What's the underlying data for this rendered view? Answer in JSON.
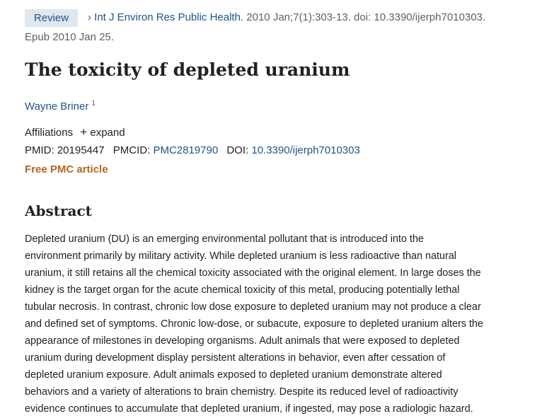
{
  "header": {
    "badge": "Review",
    "journal": "Int J Environ Res Public Health.",
    "details": "2010 Jan;7(1):303-13. doi: 10.3390/ijerph7010303.",
    "epub": "Epub 2010 Jan 25."
  },
  "title": "The toxicity of depleted uranium",
  "authors": [
    {
      "name": "Wayne Briner",
      "affiliation_ref": "1"
    }
  ],
  "affiliations": {
    "label": "Affiliations",
    "toggle": "expand"
  },
  "identifiers": {
    "pmid_label": "PMID:",
    "pmid": "20195447",
    "pmcid_label": "PMCID:",
    "pmcid": "PMC2819790",
    "doi_label": "DOI:",
    "doi": "10.3390/ijerph7010303"
  },
  "free_article": "Free PMC article",
  "abstract": {
    "heading": "Abstract",
    "lines": [
      "Depleted uranium (DU) is an emerging environmental pollutant that is introduced into the",
      "environment primarily by military activity. While depleted uranium is less radioactive than natural",
      "uranium, it still retains all the chemical toxicity associated with the original element. In large doses the",
      "kidney is the target organ for the acute chemical toxicity of this metal, producing potentially lethal",
      "tubular necrosis. In contrast, chronic low dose exposure to depleted uranium may not produce a clear",
      "and defined set of symptoms. Chronic low-dose, or subacute, exposure to depleted uranium alters the",
      "appearance of milestones in developing organisms. Adult animals that were exposed to depleted",
      "uranium during development display persistent alterations in behavior, even after cessation of",
      "depleted uranium exposure. Adult animals exposed to depleted uranium demonstrate altered",
      "behaviors and a variety of alterations to brain chemistry. Despite its reduced level of radioactivity",
      "evidence continues to accumulate that depleted uranium, if ingested, may pose a radiologic hazard."
    ]
  }
}
